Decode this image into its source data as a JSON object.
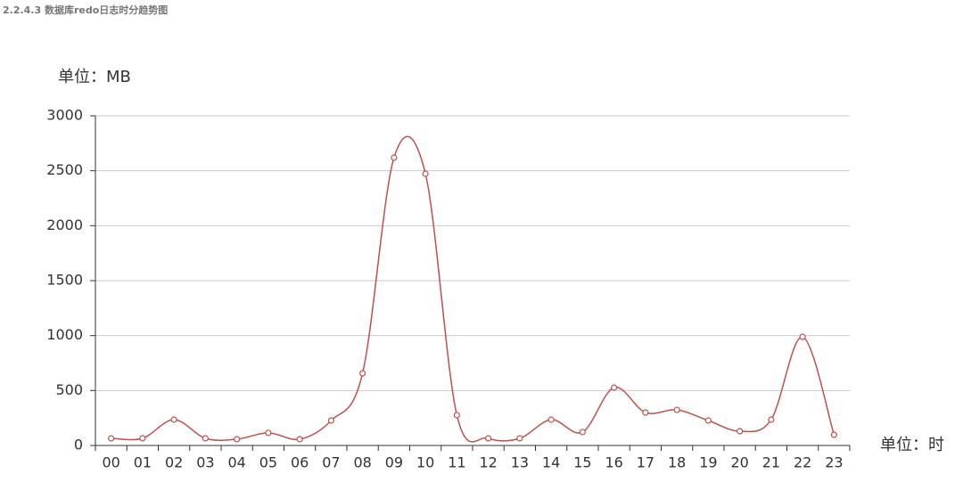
{
  "heading": "2.2.4.3 数据库redo日志时分趋势图",
  "chart_data": {
    "type": "line",
    "y_label": "单位：MB",
    "x_label": "单位：时",
    "categories": [
      "00",
      "01",
      "02",
      "03",
      "04",
      "05",
      "06",
      "07",
      "08",
      "09",
      "10",
      "11",
      "12",
      "13",
      "14",
      "15",
      "16",
      "17",
      "18",
      "19",
      "20",
      "21",
      "22",
      "23"
    ],
    "series": [
      {
        "color": "#c0504d",
        "values": [
          65,
          65,
          235,
          65,
          57,
          115,
          57,
          227,
          657,
          2619,
          2473,
          276,
          65,
          65,
          235,
          122,
          527,
          300,
          324,
          227,
          130,
          235,
          989,
          97
        ]
      }
    ],
    "ylim": [
      0,
      3000
    ],
    "yticks": [
      0,
      500,
      1000,
      1500,
      2000,
      2500,
      3000
    ],
    "grid": true,
    "smooth": true
  }
}
